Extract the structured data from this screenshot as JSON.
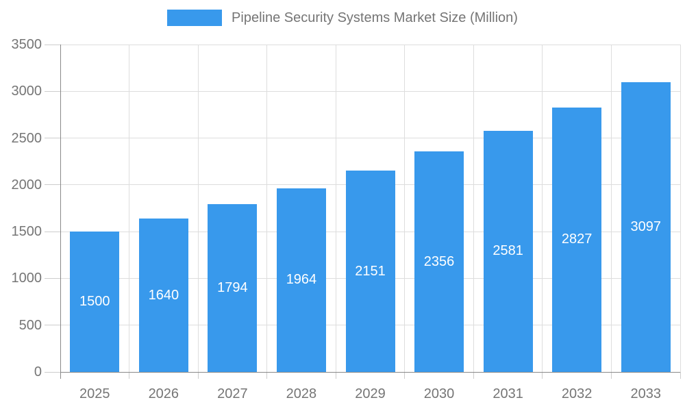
{
  "legend": {
    "title": "Pipeline Security Systems Market Size (Million)"
  },
  "chart_data": {
    "type": "bar",
    "title": "Pipeline Security Systems Market Size (Million)",
    "categories": [
      "2025",
      "2026",
      "2027",
      "2028",
      "2029",
      "2030",
      "2031",
      "2032",
      "2033"
    ],
    "values": [
      1500,
      1640,
      1794,
      1964,
      2151,
      2356,
      2581,
      2827,
      3097
    ],
    "xlabel": "",
    "ylabel": "",
    "ylim": [
      0,
      3500
    ],
    "yticks": [
      0,
      500,
      1000,
      1500,
      2000,
      2500,
      3000,
      3500
    ],
    "grid": true,
    "legend_position": "top",
    "colors": {
      "bar": "#3899EC",
      "bar_label": "#FFFFFF",
      "axis_text": "#757575",
      "grid": "#DDDDDD",
      "tick": "#CCCCCC",
      "axis_line": "#888888"
    }
  }
}
